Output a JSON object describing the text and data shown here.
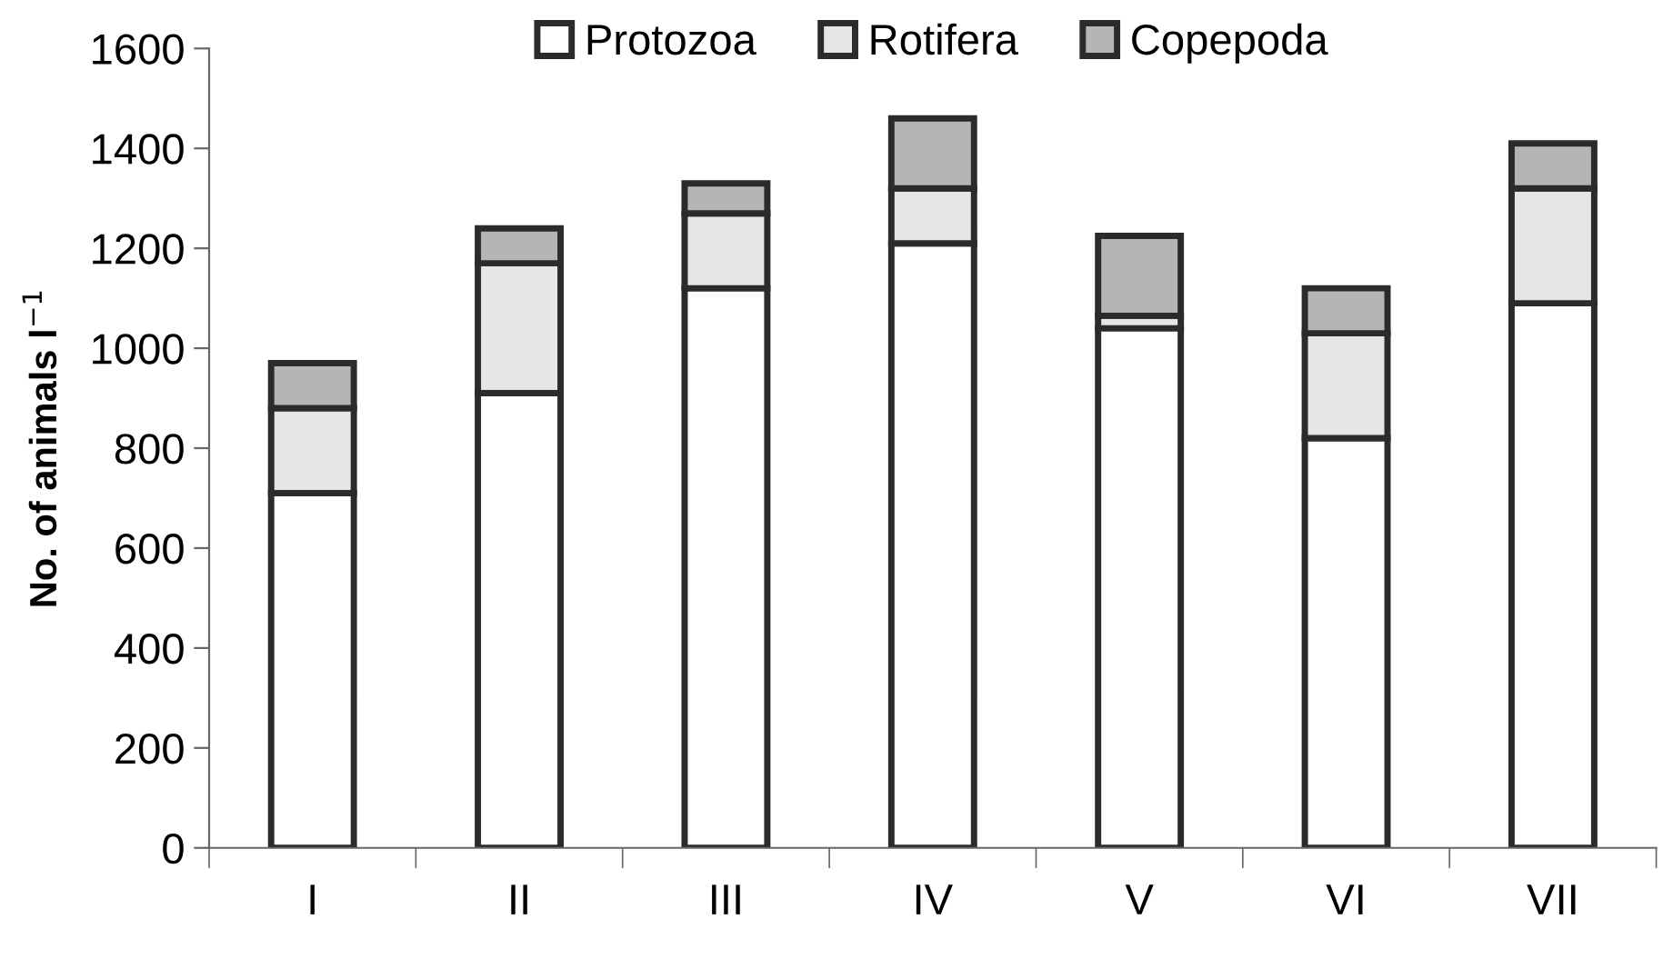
{
  "chart_data": {
    "type": "bar",
    "stacked": true,
    "categories": [
      "I",
      "II",
      "III",
      "IV",
      "V",
      "VI",
      "VII"
    ],
    "series": [
      {
        "name": "Protozoa",
        "color": "#ffffff",
        "values": [
          710,
          910,
          1120,
          1210,
          1040,
          820,
          1090
        ]
      },
      {
        "name": "Rotifera",
        "color": "#e6e6e6",
        "values": [
          170,
          260,
          150,
          110,
          25,
          210,
          230
        ]
      },
      {
        "name": "Copepoda",
        "color": "#b5b5b5",
        "values": [
          90,
          70,
          60,
          140,
          160,
          90,
          90
        ]
      }
    ],
    "ylabel": "No. of animals l$^{−1}$",
    "ylim": [
      0,
      1600
    ],
    "yticks": [
      0,
      200,
      400,
      600,
      800,
      1000,
      1200,
      1400,
      1600
    ],
    "grid": false,
    "legend": "top"
  }
}
